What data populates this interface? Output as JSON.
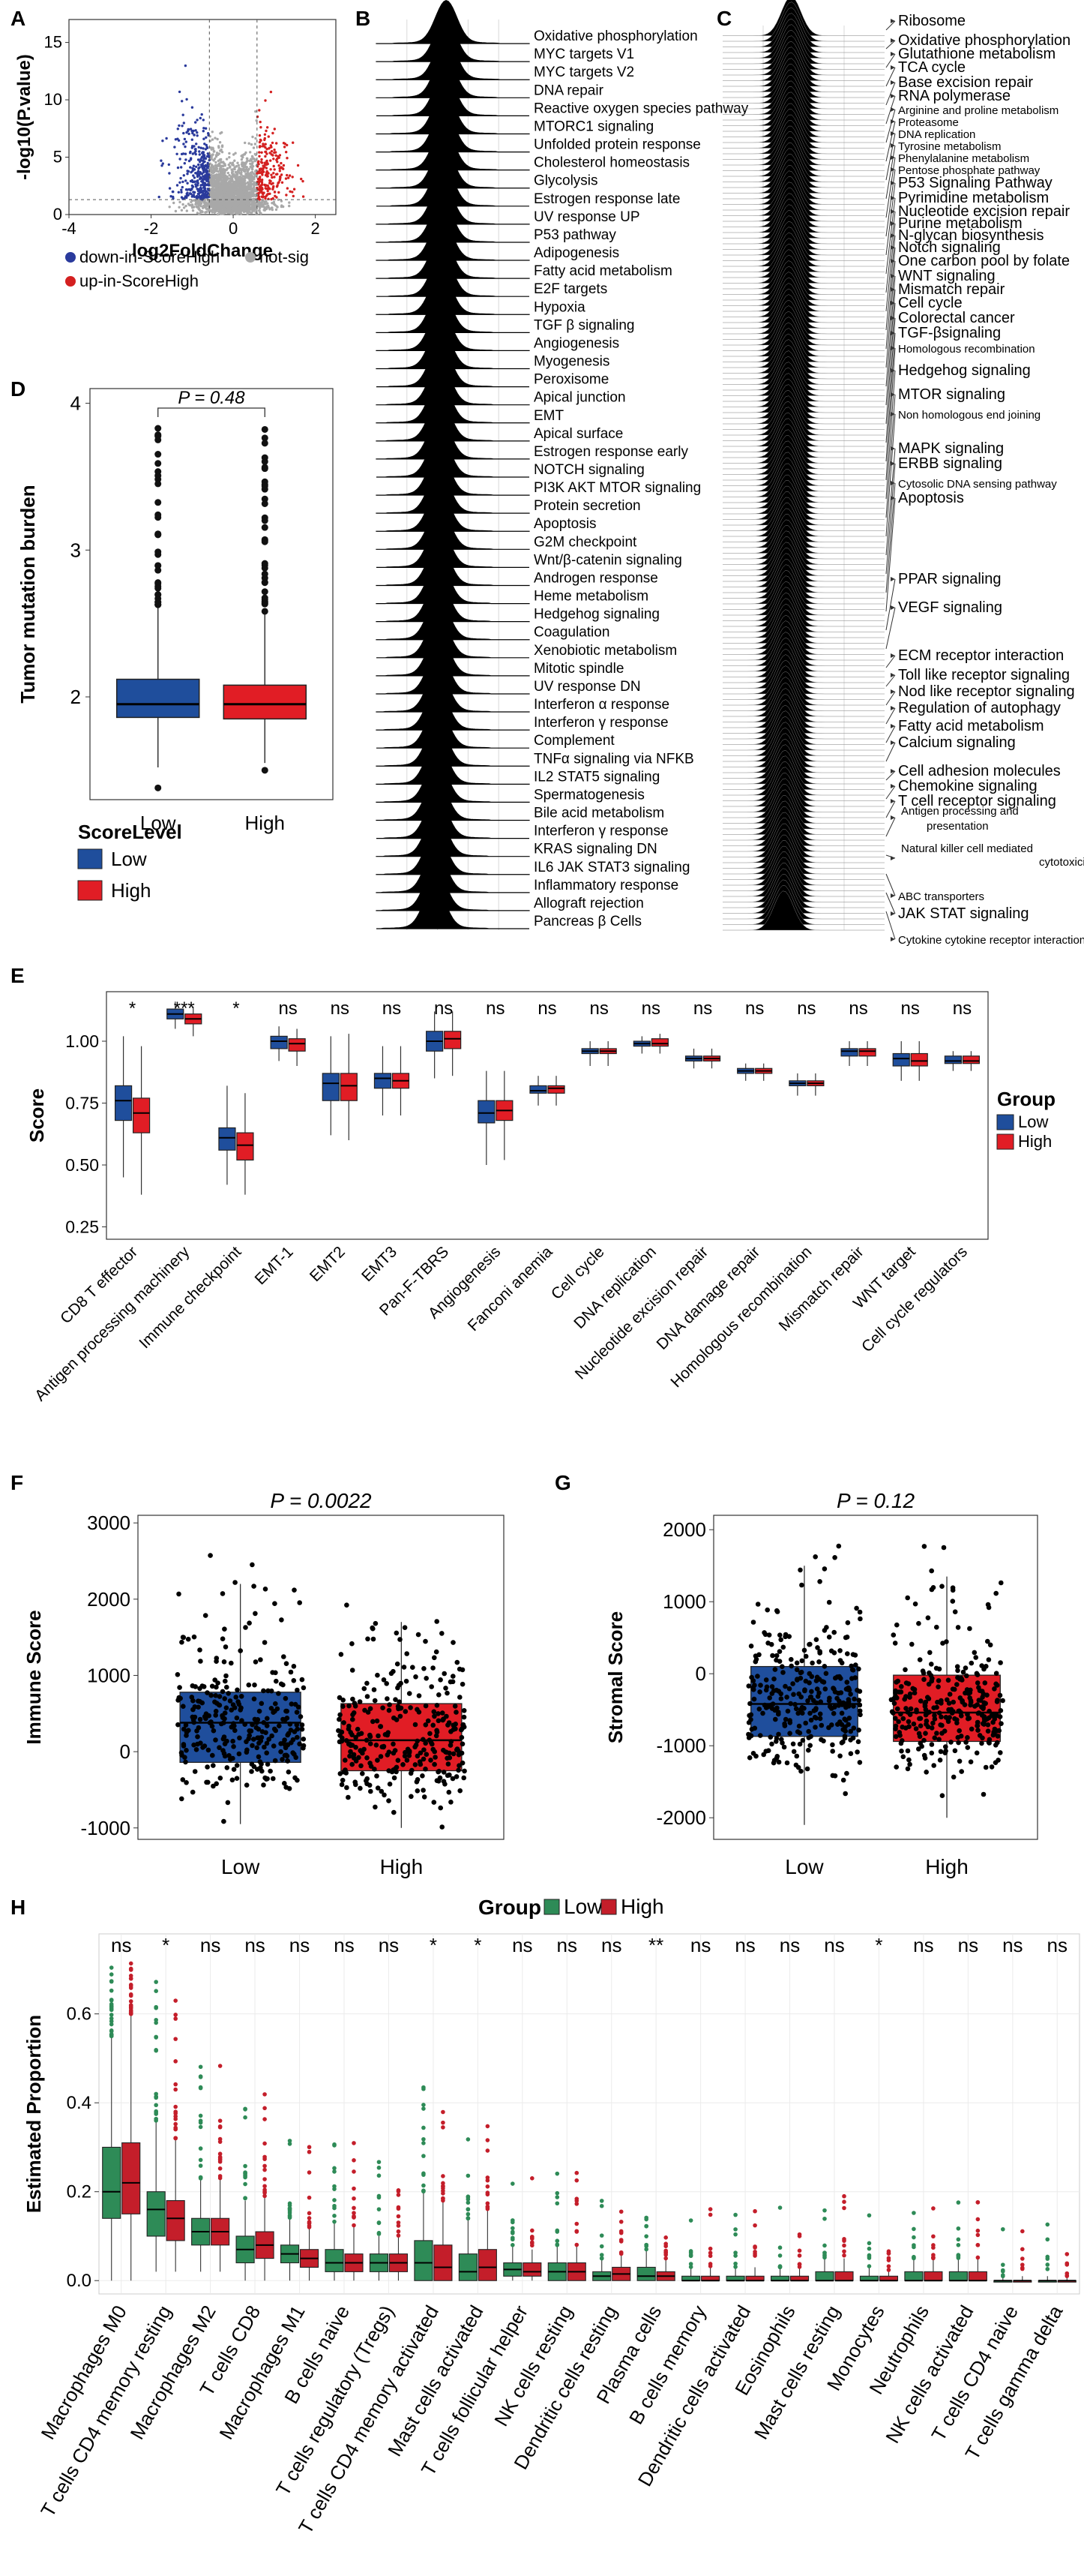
{
  "panels": {
    "A": "A",
    "B": "B",
    "C": "C",
    "D": "D",
    "E": "E",
    "F": "F",
    "G": "G",
    "H": "H"
  },
  "chart_data": [
    {
      "id": "A",
      "type": "scatter",
      "title": "",
      "xlabel": "log2FoldChange",
      "ylabel": "-log10(P.value)",
      "xlim": [
        -4,
        2.5
      ],
      "ylim": [
        0,
        17
      ],
      "xticks": [
        -4,
        -2,
        0,
        2
      ],
      "yticks": [
        0,
        5,
        10,
        15
      ],
      "thresholds": {
        "fc": [
          -0.58,
          0.58
        ],
        "p": 1.3
      },
      "legend": [
        {
          "label": "down-in-ScoreHigh",
          "color": "#2a3a9c"
        },
        {
          "label": "not-sig",
          "color": "#a8a8a8"
        },
        {
          "label": "up-in-ScoreHigh",
          "color": "#d42020"
        }
      ]
    },
    {
      "id": "B",
      "type": "ridgeline",
      "title": "",
      "categories": [
        "Oxidative phosphorylation",
        "MYC targets V1",
        "MYC targets V2",
        "DNA repair",
        "Reactive oxygen species pathway",
        "MTORC1 signaling",
        "Unfolded protein response",
        "Cholesterol homeostasis",
        "Glycolysis",
        "Estrogen response late",
        "UV response UP",
        "P53 pathway",
        "Adipogenesis",
        "Fatty acid metabolism",
        "E2F targets",
        "Hypoxia",
        "TGF β signaling",
        "Angiogenesis",
        "Myogenesis",
        "Peroxisome",
        "Apical junction",
        "EMT",
        "Apical surface",
        "Estrogen response early",
        "NOTCH signaling",
        "PI3K AKT MTOR signaling",
        "Protein secretion",
        "Apoptosis",
        "G2M checkpoint",
        "Wnt/β-catenin signaling",
        "Androgen response",
        "Heme metabolism",
        "Hedgehog signaling",
        "Coagulation",
        "Xenobiotic metabolism",
        "Mitotic spindle",
        "UV response DN",
        "Interferon α response",
        "Interferon γ response",
        "Complement",
        "TNFα signaling via NFKB",
        "IL2 STAT5 signaling",
        "Spermatogenesis",
        "Bile acid metabolism",
        "Interferon γ response",
        "KRAS signaling DN",
        "IL6 JAK STAT3 signaling",
        "Inflammatory response",
        "Allograft rejection",
        "Pancreas β Cells"
      ],
      "peak": [
        0.35,
        0.3,
        0.3,
        0.25,
        0.25,
        0.22,
        0.2,
        0.18,
        0.15,
        0.12,
        0.1,
        0.08,
        0.05,
        0.05,
        0.08,
        0.02,
        0.0,
        -0.02,
        -0.03,
        -0.02,
        -0.05,
        -0.06,
        -0.06,
        -0.07,
        -0.08,
        -0.1,
        -0.1,
        -0.1,
        -0.08,
        -0.12,
        -0.12,
        -0.13,
        -0.14,
        -0.15,
        -0.15,
        -0.14,
        -0.16,
        -0.18,
        -0.2,
        -0.2,
        -0.22,
        -0.24,
        -0.24,
        -0.26,
        -0.25,
        -0.28,
        -0.3,
        -0.32,
        -0.35,
        -0.38
      ]
    },
    {
      "id": "C",
      "type": "ridgeline",
      "title": "",
      "labels": [
        "Ribosome",
        "Oxidative phosphorylation",
        "Glutathione metabolism",
        "TCA cycle",
        "Base excision repair",
        "RNA polymerase",
        "Arginine and proline metabolism",
        "Proteasome",
        "DNA replication",
        "Tyrosine metabolism",
        "Phenylalanine metabolism",
        "Pentose phosphate pathway",
        "P53 Signaling Pathway",
        "Pyrimidine metabolism",
        "Nucleotide excision repair",
        "Purine metabolism",
        "N-glycan biosynthesis",
        "Notch signaling",
        "One carbon pool by folate",
        "WNT signaling",
        "Mismatch repair",
        "Cell cycle",
        "Colorectal cancer",
        "TGF-βsignaling",
        "Homologous recombination",
        "Hedgehog signaling",
        "MTOR signaling",
        "Non homologous end joining",
        "MAPK signaling",
        "ERBB signaling",
        "Cytosolic DNA sensing pathway",
        "Apoptosis",
        "PPAR signaling",
        "VEGF signaling",
        "ECM receptor interaction",
        "Toll like receptor signaling",
        "Nod like receptor signaling",
        "Regulation of autophagy",
        "Fatty acid metabolism",
        "Calcium signaling",
        "Cell adhesion molecules",
        "Chemokine signaling",
        "T cell receptor signaling",
        "Antigen processing and presentation",
        "Natural killer cell mediated cytotoxicity",
        "ABC transporters",
        "JAK STAT signaling",
        "Cytokine cytokine receptor interaction"
      ]
    },
    {
      "id": "D",
      "type": "box",
      "title": "",
      "pvalue": "P = 0.48",
      "ylabel": "Tumor mutation burden",
      "categories": [
        "Low",
        "High"
      ],
      "ylim": [
        1.3,
        4.1
      ],
      "yticks": [
        2,
        3,
        4
      ],
      "boxes": [
        {
          "group": "Low",
          "q1": 1.86,
          "median": 1.95,
          "q3": 2.12,
          "wlo": 1.52,
          "whi": 2.62
        },
        {
          "group": "High",
          "q1": 1.85,
          "median": 1.95,
          "q3": 2.08,
          "wlo": 1.55,
          "whi": 2.58
        }
      ],
      "legend_title": "ScoreLevel",
      "legend": [
        {
          "label": "Low",
          "color": "#1f4e9c"
        },
        {
          "label": "High",
          "color": "#e11d25"
        }
      ]
    },
    {
      "id": "E",
      "type": "box",
      "title": "",
      "ylabel": "Score",
      "ylim": [
        0.2,
        1.2
      ],
      "yticks": [
        0.25,
        0.5,
        0.75,
        1.0
      ],
      "categories": [
        "CD8 T effector",
        "Antigen processing machinery",
        "Immune checkpoint",
        "EMT-1",
        "EMT2",
        "EMT3",
        "Pan-F-TBRS",
        "Angiogenesis",
        "Fanconi anemia",
        "Cell cycle",
        "DNA replication",
        "Nucleotide excision repair",
        "DNA damage repair",
        "Homologous recombination",
        "Mismatch repair",
        "WNT target",
        "Cell cycle regulators"
      ],
      "significance": [
        "*",
        "***",
        "*",
        "ns",
        "ns",
        "ns",
        "ns",
        "ns",
        "ns",
        "ns",
        "ns",
        "ns",
        "ns",
        "ns",
        "ns",
        "ns",
        "ns"
      ],
      "low": [
        [
          0.68,
          0.76,
          0.82,
          0.45,
          1.02
        ],
        [
          1.09,
          1.11,
          1.13,
          1.05,
          1.16
        ],
        [
          0.56,
          0.61,
          0.65,
          0.42,
          0.82
        ],
        [
          0.97,
          1.0,
          1.02,
          0.92,
          1.06
        ],
        [
          0.76,
          0.83,
          0.87,
          0.62,
          1.02
        ],
        [
          0.81,
          0.85,
          0.87,
          0.7,
          0.98
        ],
        [
          0.96,
          1.0,
          1.04,
          0.85,
          1.12
        ],
        [
          0.67,
          0.71,
          0.76,
          0.5,
          0.88
        ],
        [
          0.79,
          0.8,
          0.82,
          0.74,
          0.86
        ],
        [
          0.95,
          0.96,
          0.97,
          0.9,
          1.0
        ],
        [
          0.98,
          0.99,
          1.0,
          0.95,
          1.02
        ],
        [
          0.92,
          0.93,
          0.94,
          0.89,
          0.97
        ],
        [
          0.87,
          0.88,
          0.89,
          0.84,
          0.91
        ],
        [
          0.82,
          0.83,
          0.84,
          0.78,
          0.87
        ],
        [
          0.94,
          0.96,
          0.97,
          0.9,
          1.0
        ],
        [
          0.9,
          0.93,
          0.95,
          0.84,
          1.0
        ],
        [
          0.91,
          0.92,
          0.94,
          0.88,
          0.96
        ]
      ],
      "high": [
        [
          0.63,
          0.71,
          0.77,
          0.38,
          0.98
        ],
        [
          1.07,
          1.09,
          1.11,
          1.02,
          1.14
        ],
        [
          0.52,
          0.58,
          0.63,
          0.38,
          0.79
        ],
        [
          0.96,
          0.99,
          1.01,
          0.9,
          1.05
        ],
        [
          0.76,
          0.82,
          0.87,
          0.6,
          1.03
        ],
        [
          0.81,
          0.84,
          0.87,
          0.7,
          0.98
        ],
        [
          0.97,
          1.01,
          1.04,
          0.86,
          1.12
        ],
        [
          0.68,
          0.72,
          0.76,
          0.52,
          0.88
        ],
        [
          0.79,
          0.81,
          0.82,
          0.74,
          0.86
        ],
        [
          0.95,
          0.96,
          0.97,
          0.9,
          1.0
        ],
        [
          0.98,
          0.99,
          1.01,
          0.95,
          1.03
        ],
        [
          0.92,
          0.93,
          0.94,
          0.89,
          0.97
        ],
        [
          0.87,
          0.88,
          0.89,
          0.84,
          0.91
        ],
        [
          0.82,
          0.83,
          0.84,
          0.78,
          0.87
        ],
        [
          0.94,
          0.96,
          0.97,
          0.9,
          1.0
        ],
        [
          0.9,
          0.92,
          0.95,
          0.84,
          1.0
        ],
        [
          0.91,
          0.92,
          0.94,
          0.88,
          0.96
        ]
      ],
      "legend_title": "Group",
      "legend": [
        {
          "label": "Low",
          "color": "#1f4e9c"
        },
        {
          "label": "High",
          "color": "#e11d25"
        }
      ]
    },
    {
      "id": "F",
      "type": "box",
      "title": "",
      "pvalue": "P = 0.0022",
      "ylabel": "Immune Score",
      "categories": [
        "Low",
        "High"
      ],
      "ylim": [
        -1150,
        3100
      ],
      "yticks": [
        -1000,
        0,
        1000,
        2000,
        3000
      ],
      "boxes": [
        {
          "group": "Low",
          "q1": -140,
          "median": 380,
          "q3": 780,
          "wlo": -950,
          "whi": 2200
        },
        {
          "group": "High",
          "q1": -250,
          "median": 150,
          "q3": 630,
          "wlo": -1000,
          "whi": 1700
        }
      ]
    },
    {
      "id": "G",
      "type": "box",
      "title": "",
      "pvalue": "P = 0.12",
      "ylabel": "Stromal Score",
      "categories": [
        "Low",
        "High"
      ],
      "ylim": [
        -2300,
        2200
      ],
      "yticks": [
        -2000,
        -1000,
        0,
        1000,
        2000
      ],
      "boxes": [
        {
          "group": "Low",
          "q1": -870,
          "median": -420,
          "q3": 100,
          "wlo": -2100,
          "whi": 1500
        },
        {
          "group": "High",
          "q1": -940,
          "median": -540,
          "q3": -20,
          "wlo": -2000,
          "whi": 1350
        }
      ]
    },
    {
      "id": "H",
      "type": "box",
      "title": "",
      "ylabel": "Estimated Proportion",
      "ylim": [
        -0.03,
        0.78
      ],
      "yticks": [
        0.0,
        0.2,
        0.4,
        0.6
      ],
      "categories": [
        "Macrophages M0",
        "T cells CD4 memory resting",
        "Macrophages M2",
        "T cells CD8",
        "Macrophages M1",
        "B cells naive",
        "T cells regulatory (Tregs)",
        "T cells CD4 memory activated",
        "Mast cells activated",
        "T cells follicular helper",
        "NK cells resting",
        "Dendritic cells resting",
        "Plasma cells",
        "B cells memory",
        "Dendritic cells activated",
        "Eosinophils",
        "Mast cells resting",
        "Monocytes",
        "Neutrophils",
        "NK cells activated",
        "T cells CD4 naive",
        "T cells gamma delta"
      ],
      "significance": [
        "ns",
        "*",
        "ns",
        "ns",
        "ns",
        "ns",
        "ns",
        "*",
        "*",
        "ns",
        "ns",
        "ns",
        "**",
        "ns",
        "ns",
        "ns",
        "ns",
        "*",
        "ns",
        "ns",
        "ns",
        "ns"
      ],
      "low": [
        [
          0.14,
          0.2,
          0.3,
          0.0,
          0.55
        ],
        [
          0.1,
          0.16,
          0.2,
          0.02,
          0.36
        ],
        [
          0.08,
          0.11,
          0.14,
          0.02,
          0.23
        ],
        [
          0.04,
          0.07,
          0.1,
          0.0,
          0.18
        ],
        [
          0.04,
          0.06,
          0.08,
          0.0,
          0.14
        ],
        [
          0.02,
          0.04,
          0.07,
          0.0,
          0.13
        ],
        [
          0.02,
          0.04,
          0.06,
          0.0,
          0.1
        ],
        [
          0.0,
          0.04,
          0.09,
          0.0,
          0.2
        ],
        [
          0.0,
          0.02,
          0.06,
          0.0,
          0.14
        ],
        [
          0.01,
          0.025,
          0.04,
          0.0,
          0.08
        ],
        [
          0.0,
          0.02,
          0.04,
          0.0,
          0.08
        ],
        [
          0.0,
          0.01,
          0.02,
          0.0,
          0.05
        ],
        [
          0.0,
          0.01,
          0.03,
          0.0,
          0.07
        ],
        [
          0.0,
          0.0,
          0.01,
          0.0,
          0.03
        ],
        [
          0.0,
          0.0,
          0.01,
          0.0,
          0.03
        ],
        [
          0.0,
          0.0,
          0.01,
          0.0,
          0.03
        ],
        [
          0.0,
          0.0,
          0.02,
          0.0,
          0.05
        ],
        [
          0.0,
          0.0,
          0.01,
          0.0,
          0.03
        ],
        [
          0.0,
          0.0,
          0.02,
          0.0,
          0.05
        ],
        [
          0.0,
          0.0,
          0.02,
          0.0,
          0.05
        ],
        [
          0.0,
          0.0,
          0.0,
          0.0,
          0.01
        ],
        [
          0.0,
          0.0,
          0.0,
          0.0,
          0.01
        ]
      ],
      "high": [
        [
          0.15,
          0.22,
          0.31,
          0.0,
          0.6
        ],
        [
          0.09,
          0.14,
          0.18,
          0.02,
          0.32
        ],
        [
          0.08,
          0.11,
          0.14,
          0.02,
          0.23
        ],
        [
          0.05,
          0.08,
          0.11,
          0.0,
          0.19
        ],
        [
          0.03,
          0.05,
          0.07,
          0.0,
          0.12
        ],
        [
          0.02,
          0.04,
          0.06,
          0.0,
          0.12
        ],
        [
          0.02,
          0.04,
          0.06,
          0.0,
          0.1
        ],
        [
          0.0,
          0.03,
          0.08,
          0.0,
          0.18
        ],
        [
          0.0,
          0.03,
          0.07,
          0.0,
          0.16
        ],
        [
          0.01,
          0.02,
          0.04,
          0.0,
          0.07
        ],
        [
          0.0,
          0.02,
          0.04,
          0.0,
          0.08
        ],
        [
          0.0,
          0.015,
          0.03,
          0.0,
          0.06
        ],
        [
          0.0,
          0.01,
          0.02,
          0.0,
          0.05
        ],
        [
          0.0,
          0.0,
          0.01,
          0.0,
          0.03
        ],
        [
          0.0,
          0.0,
          0.01,
          0.0,
          0.03
        ],
        [
          0.0,
          0.0,
          0.01,
          0.0,
          0.03
        ],
        [
          0.0,
          0.0,
          0.02,
          0.0,
          0.05
        ],
        [
          0.0,
          0.0,
          0.01,
          0.0,
          0.02
        ],
        [
          0.0,
          0.0,
          0.02,
          0.0,
          0.05
        ],
        [
          0.0,
          0.0,
          0.02,
          0.0,
          0.05
        ],
        [
          0.0,
          0.0,
          0.0,
          0.0,
          0.01
        ],
        [
          0.0,
          0.0,
          0.0,
          0.0,
          0.01
        ]
      ],
      "legend_title": "Group",
      "legend": [
        {
          "label": "Low",
          "color": "#2e8b57"
        },
        {
          "label": "High",
          "color": "#c41e2a"
        }
      ]
    }
  ]
}
